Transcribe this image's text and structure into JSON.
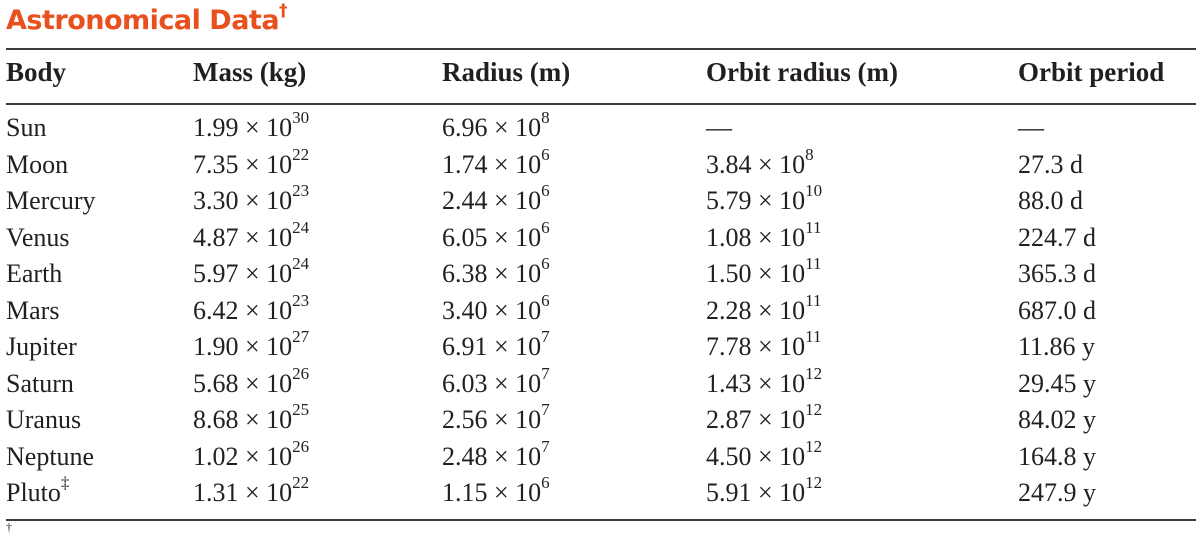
{
  "title": "Astronomical Data",
  "title_mark": "†",
  "columns": [
    "Body",
    "Mass (kg)",
    "Radius (m)",
    "Orbit radius (m)",
    "Orbit period"
  ],
  "rows": [
    {
      "body": "Sun",
      "body_mark": "",
      "mass_m": "1.99 × 10",
      "mass_e": "30",
      "radius_m": "6.96 × 10",
      "radius_e": "8",
      "orbit_m": "—",
      "orbit_e": "",
      "period": "—"
    },
    {
      "body": "Moon",
      "body_mark": "",
      "mass_m": "7.35 × 10",
      "mass_e": "22",
      "radius_m": "1.74 × 10",
      "radius_e": "6",
      "orbit_m": "3.84 × 10",
      "orbit_e": "8",
      "period": "27.3 d"
    },
    {
      "body": "Mercury",
      "body_mark": "",
      "mass_m": "3.30 × 10",
      "mass_e": "23",
      "radius_m": "2.44 × 10",
      "radius_e": "6",
      "orbit_m": "5.79 × 10",
      "orbit_e": "10",
      "period": "88.0 d"
    },
    {
      "body": "Venus",
      "body_mark": "",
      "mass_m": "4.87 × 10",
      "mass_e": "24",
      "radius_m": "6.05 × 10",
      "radius_e": "6",
      "orbit_m": "1.08 × 10",
      "orbit_e": "11",
      "period": "224.7 d"
    },
    {
      "body": "Earth",
      "body_mark": "",
      "mass_m": "5.97 × 10",
      "mass_e": "24",
      "radius_m": "6.38 × 10",
      "radius_e": "6",
      "orbit_m": "1.50 × 10",
      "orbit_e": "11",
      "period": "365.3 d"
    },
    {
      "body": "Mars",
      "body_mark": "",
      "mass_m": "6.42 × 10",
      "mass_e": "23",
      "radius_m": "3.40 × 10",
      "radius_e": "6",
      "orbit_m": "2.28 × 10",
      "orbit_e": "11",
      "period": "687.0 d"
    },
    {
      "body": "Jupiter",
      "body_mark": "",
      "mass_m": "1.90 × 10",
      "mass_e": "27",
      "radius_m": "6.91 × 10",
      "radius_e": "7",
      "orbit_m": "7.78 × 10",
      "orbit_e": "11",
      "period": "11.86 y"
    },
    {
      "body": "Saturn",
      "body_mark": "",
      "mass_m": "5.68 × 10",
      "mass_e": "26",
      "radius_m": "6.03 × 10",
      "radius_e": "7",
      "orbit_m": "1.43 × 10",
      "orbit_e": "12",
      "period": "29.45 y"
    },
    {
      "body": "Uranus",
      "body_mark": "",
      "mass_m": "8.68 × 10",
      "mass_e": "25",
      "radius_m": "2.56 × 10",
      "radius_e": "7",
      "orbit_m": "2.87 × 10",
      "orbit_e": "12",
      "period": "84.02 y"
    },
    {
      "body": "Neptune",
      "body_mark": "",
      "mass_m": "1.02 × 10",
      "mass_e": "26",
      "radius_m": "2.48 × 10",
      "radius_e": "7",
      "orbit_m": "4.50 × 10",
      "orbit_e": "12",
      "period": "164.8 y"
    },
    {
      "body": "Pluto",
      "body_mark": "‡",
      "mass_m": "1.31 × 10",
      "mass_e": "22",
      "radius_m": "1.15 × 10",
      "radius_e": "6",
      "orbit_m": "5.91 × 10",
      "orbit_e": "12",
      "period": "247.9 y"
    }
  ],
  "footnote_mark": "†"
}
